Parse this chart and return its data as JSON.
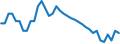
{
  "x": [
    0,
    1,
    2,
    3,
    4,
    5,
    6,
    7,
    8,
    9,
    10,
    11,
    12,
    13,
    14,
    15,
    16,
    17,
    18,
    19,
    20,
    21,
    22,
    23,
    24,
    25,
    26,
    27,
    28,
    29,
    30,
    31,
    32
  ],
  "y": [
    -0.5,
    -0.5,
    0.8,
    0.8,
    -0.2,
    -0.2,
    -1.5,
    -1.5,
    -0.2,
    -0.2,
    1.8,
    2.5,
    1.5,
    0.5,
    0.8,
    1.8,
    1.2,
    0.8,
    0.5,
    0.2,
    0.0,
    -0.3,
    -0.6,
    -1.0,
    -1.3,
    -1.8,
    -1.5,
    -2.8,
    -3.0,
    -2.0,
    -2.8,
    -1.5,
    -1.8
  ],
  "line_color": "#1a7abf",
  "linewidth": 1.5,
  "background_color": "#ffffff"
}
